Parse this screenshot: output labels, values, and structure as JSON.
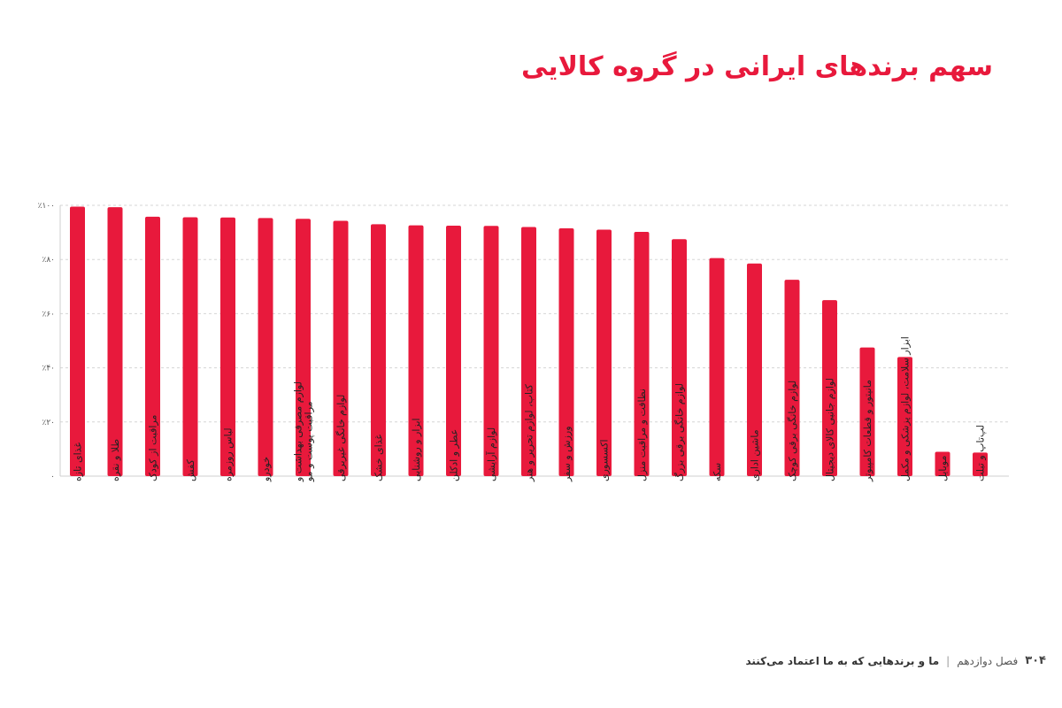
{
  "header": {
    "title": "سهم برندهای ایرانی در گروه کالایی"
  },
  "footer": {
    "page_number": "۳۰۴",
    "chapter": "فصل دوازدهم",
    "separator": "|",
    "book_title": "ما و برندهایی که به ما اعتماد می‌کنند"
  },
  "chart_data": {
    "type": "bar",
    "title": "سهم برندهای ایرانی در گروه کالایی",
    "xlabel": "",
    "ylabel": "",
    "ylim": [
      0,
      100
    ],
    "grid": true,
    "bar_color": "#e8193c",
    "yticks": [
      {
        "value": 0,
        "label": "۰"
      },
      {
        "value": 20,
        "label": "٪۲۰"
      },
      {
        "value": 40,
        "label": "٪۴۰"
      },
      {
        "value": 60,
        "label": "٪۶۰"
      },
      {
        "value": 80,
        "label": "٪۸۰"
      },
      {
        "value": 100,
        "label": "٪۱۰۰"
      }
    ],
    "categories": [
      [
        "غذای تازه"
      ],
      [
        "طلا و نقره"
      ],
      [
        "مراقبت از کودک"
      ],
      [
        "کفش"
      ],
      [
        "لباس روزمره"
      ],
      [
        "خودرو"
      ],
      [
        "لوازم مصرفی بهداشت و",
        "مراقبت پوست و مو"
      ],
      [
        "لوازم خانگی غیربرقی"
      ],
      [
        "غذای خشک"
      ],
      [
        "ابزار و روشنایی"
      ],
      [
        "عطر و ادکلن"
      ],
      [
        "لوازم آرایشی"
      ],
      [
        "کتاب، لوازم تحریر و هنر"
      ],
      [
        "ورزش و سفر"
      ],
      [
        "اکسسوری"
      ],
      [
        "نظافت و مراقبت منزل"
      ],
      [
        "لوازم خانگی برقی بزرگ"
      ],
      [
        "سکه"
      ],
      [
        "ماشین اداری"
      ],
      [
        "لوازم خانگی برقی کوچک"
      ],
      [
        "لوازم جانبی کالای دیجیتال"
      ],
      [
        "مانیتور و قطعات کامپیوتر"
      ],
      [
        "ابزار سلامت، لوازم پزشکی و مکمل"
      ],
      [
        "موبایل"
      ],
      [
        "لپ‌تاپ و تبلت"
      ]
    ],
    "values": [
      99.5,
      99.3,
      95.8,
      95.6,
      95.5,
      95.3,
      95,
      94.3,
      93,
      92.6,
      92.5,
      92.4,
      92,
      91.5,
      91,
      90.2,
      87.5,
      80.5,
      78.5,
      72.5,
      65,
      47.5,
      44,
      9,
      8.7
    ]
  }
}
